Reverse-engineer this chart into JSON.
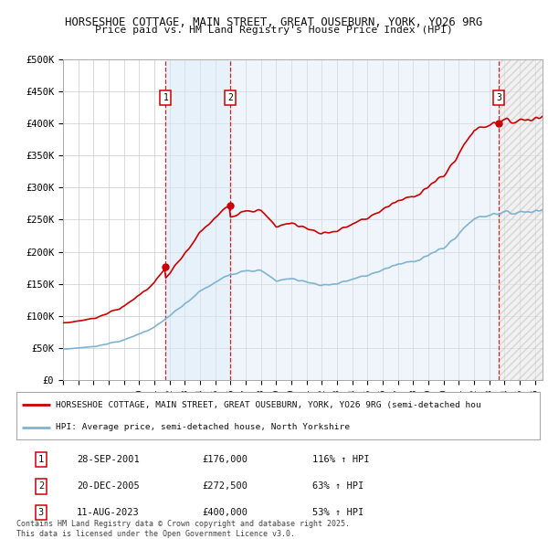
{
  "title1": "HORSESHOE COTTAGE, MAIN STREET, GREAT OUSEBURN, YORK, YO26 9RG",
  "title2": "Price paid vs. HM Land Registry's House Price Index (HPI)",
  "ylim": [
    0,
    500000
  ],
  "xlim_start": 1995.0,
  "xlim_end": 2026.5,
  "sale_dates": [
    2001.74,
    2005.97,
    2023.61
  ],
  "sale_prices": [
    176000,
    272500,
    400000
  ],
  "sale_labels": [
    "1",
    "2",
    "3"
  ],
  "sale_pct": [
    "116% ↑ HPI",
    "63% ↑ HPI",
    "53% ↑ HPI"
  ],
  "sale_date_strs": [
    "28-SEP-2001",
    "20-DEC-2005",
    "11-AUG-2023"
  ],
  "red_line_color": "#cc0000",
  "blue_line_color": "#7fb3d3",
  "shade_color": "#ddeeff",
  "legend_label_red": "HORSESHOE COTTAGE, MAIN STREET, GREAT OUSEBURN, YORK, YO26 9RG (semi-detached hou",
  "legend_label_blue": "HPI: Average price, semi-detached house, North Yorkshire",
  "footer1": "Contains HM Land Registry data © Crown copyright and database right 2025.",
  "footer2": "This data is licensed under the Open Government Licence v3.0.",
  "ytick_labels": [
    "£0",
    "£50K",
    "£100K",
    "£150K",
    "£200K",
    "£250K",
    "£300K",
    "£350K",
    "£400K",
    "£450K",
    "£500K"
  ],
  "ytick_values": [
    0,
    50000,
    100000,
    150000,
    200000,
    250000,
    300000,
    350000,
    400000,
    450000,
    500000
  ],
  "background_color": "#ffffff",
  "grid_color": "#cccccc"
}
